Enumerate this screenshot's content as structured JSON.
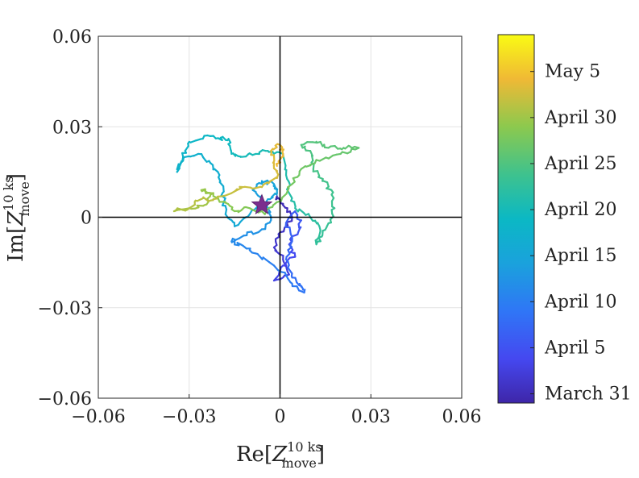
{
  "chart_data": {
    "type": "line",
    "title": "",
    "xlabel": {
      "main": "Re[",
      "var": "Z",
      "sup": "10 ks",
      "sub": "move",
      "close": "]"
    },
    "ylabel": {
      "main": "Im[",
      "var": "Z",
      "sup": "10 ks",
      "sub": "move",
      "close": "]"
    },
    "xlim": [
      -0.06,
      0.06
    ],
    "ylim": [
      -0.06,
      0.06
    ],
    "x_ticks": [
      -0.06,
      -0.03,
      0,
      0.03,
      0.06
    ],
    "y_ticks": [
      -0.06,
      -0.03,
      0,
      0.03,
      0.06
    ],
    "x_tick_labels": [
      "−0.06",
      "−0.03",
      "0",
      "0.03",
      "0.06"
    ],
    "y_tick_labels": [
      "−0.06",
      "−0.03",
      "0",
      "0.03",
      "0.06"
    ],
    "grid": true,
    "colormap": "parula",
    "colorbar": {
      "range_days": [
        0,
        40
      ],
      "labels": [
        {
          "text": "May 5",
          "day": 36
        },
        {
          "text": "April 30",
          "day": 31
        },
        {
          "text": "April 25",
          "day": 26
        },
        {
          "text": "April 20",
          "day": 21
        },
        {
          "text": "April 15",
          "day": 16
        },
        {
          "text": "April 10",
          "day": 11
        },
        {
          "text": "April 5",
          "day": 6
        },
        {
          "text": "March 31",
          "day": 1
        }
      ]
    },
    "trajectory": [
      {
        "x": -0.001,
        "y": 0.007,
        "day": 0
      },
      {
        "x": 0.001,
        "y": 0.004,
        "day": 1
      },
      {
        "x": 0.004,
        "y": 0.0,
        "day": 1.5
      },
      {
        "x": 0.0,
        "y": -0.005,
        "day": 2
      },
      {
        "x": -0.002,
        "y": -0.01,
        "day": 2.5
      },
      {
        "x": 0.001,
        "y": -0.014,
        "day": 3
      },
      {
        "x": 0.003,
        "y": -0.019,
        "day": 3.5
      },
      {
        "x": -0.002,
        "y": -0.021,
        "day": 4
      },
      {
        "x": 0.001,
        "y": -0.016,
        "day": 4.5
      },
      {
        "x": 0.005,
        "y": -0.013,
        "day": 5
      },
      {
        "x": 0.003,
        "y": -0.009,
        "day": 5.5
      },
      {
        "x": 0.006,
        "y": -0.005,
        "day": 6
      },
      {
        "x": 0.007,
        "y": -0.001,
        "day": 6.5
      },
      {
        "x": 0.005,
        "y": 0.002,
        "day": 7
      },
      {
        "x": 0.002,
        "y": -0.002,
        "day": 7.5
      },
      {
        "x": 0.004,
        "y": -0.008,
        "day": 8
      },
      {
        "x": 0.002,
        "y": -0.014,
        "day": 8.5
      },
      {
        "x": 0.004,
        "y": -0.02,
        "day": 9
      },
      {
        "x": 0.007,
        "y": -0.023,
        "day": 9.5
      },
      {
        "x": 0.008,
        "y": -0.025,
        "day": 10
      },
      {
        "x": 0.004,
        "y": -0.022,
        "day": 10.5
      },
      {
        "x": -0.002,
        "y": -0.016,
        "day": 11
      },
      {
        "x": -0.008,
        "y": -0.012,
        "day": 11.5
      },
      {
        "x": -0.013,
        "y": -0.009,
        "day": 12
      },
      {
        "x": -0.016,
        "y": -0.008,
        "day": 12.5
      },
      {
        "x": -0.011,
        "y": -0.006,
        "day": 13
      },
      {
        "x": -0.006,
        "y": -0.004,
        "day": 13.5
      },
      {
        "x": -0.003,
        "y": -0.001,
        "day": 14
      },
      {
        "x": -0.004,
        "y": 0.003,
        "day": 14.3
      },
      {
        "x": -0.006,
        "y": 0.006,
        "day": 14.6
      },
      {
        "x": -0.009,
        "y": 0.009,
        "day": 15
      },
      {
        "x": -0.006,
        "y": 0.012,
        "day": 15.3
      },
      {
        "x": -0.002,
        "y": 0.011,
        "day": 15.6
      },
      {
        "x": -0.001,
        "y": 0.008,
        "day": 15.9
      },
      {
        "x": -0.004,
        "y": 0.006,
        "day": 16.2
      },
      {
        "x": -0.01,
        "y": 0.001,
        "day": 16.5
      },
      {
        "x": -0.015,
        "y": -0.003,
        "day": 16.7
      },
      {
        "x": -0.018,
        "y": 0.001,
        "day": 17
      },
      {
        "x": -0.019,
        "y": 0.008,
        "day": 17.3
      },
      {
        "x": -0.02,
        "y": 0.014,
        "day": 17.6
      },
      {
        "x": -0.023,
        "y": 0.018,
        "day": 17.9
      },
      {
        "x": -0.027,
        "y": 0.021,
        "day": 18.2
      },
      {
        "x": -0.032,
        "y": 0.019,
        "day": 18.5
      },
      {
        "x": -0.034,
        "y": 0.015,
        "day": 18.8
      },
      {
        "x": -0.032,
        "y": 0.02,
        "day": 19.1
      },
      {
        "x": -0.03,
        "y": 0.025,
        "day": 19.4
      },
      {
        "x": -0.025,
        "y": 0.027,
        "day": 19.7
      },
      {
        "x": -0.02,
        "y": 0.026,
        "day": 20
      },
      {
        "x": -0.017,
        "y": 0.026,
        "day": 20.3
      },
      {
        "x": -0.016,
        "y": 0.021,
        "day": 20.6
      },
      {
        "x": -0.013,
        "y": 0.02,
        "day": 20.9
      },
      {
        "x": -0.008,
        "y": 0.021,
        "day": 21.2
      },
      {
        "x": -0.004,
        "y": 0.022,
        "day": 21.5
      },
      {
        "x": 0.001,
        "y": 0.021,
        "day": 21.8
      },
      {
        "x": 0.002,
        "y": 0.014,
        "day": 22.1
      },
      {
        "x": 0.003,
        "y": 0.008,
        "day": 22.4
      },
      {
        "x": 0.005,
        "y": 0.003,
        "day": 22.7
      },
      {
        "x": 0.01,
        "y": 0.0,
        "day": 23.0
      },
      {
        "x": 0.013,
        "y": -0.003,
        "day": 23.3
      },
      {
        "x": 0.012,
        "y": -0.009,
        "day": 23.6
      },
      {
        "x": 0.014,
        "y": -0.006,
        "day": 23.9
      },
      {
        "x": 0.016,
        "y": -0.002,
        "day": 24.2
      },
      {
        "x": 0.018,
        "y": 0.003,
        "day": 24.5
      },
      {
        "x": 0.017,
        "y": 0.009,
        "day": 24.8
      },
      {
        "x": 0.014,
        "y": 0.012,
        "day": 25.1
      },
      {
        "x": 0.011,
        "y": 0.016,
        "day": 25.4
      },
      {
        "x": 0.01,
        "y": 0.022,
        "day": 25.7
      },
      {
        "x": 0.007,
        "y": 0.024,
        "day": 26.0
      },
      {
        "x": 0.012,
        "y": 0.025,
        "day": 26.3
      },
      {
        "x": 0.016,
        "y": 0.023,
        "day": 26.6
      },
      {
        "x": 0.021,
        "y": 0.023,
        "day": 26.9
      },
      {
        "x": 0.026,
        "y": 0.023,
        "day": 27.2
      },
      {
        "x": 0.02,
        "y": 0.021,
        "day": 27.5
      },
      {
        "x": 0.012,
        "y": 0.019,
        "day": 27.8
      },
      {
        "x": 0.007,
        "y": 0.016,
        "day": 28.1
      },
      {
        "x": 0.004,
        "y": 0.011,
        "day": 28.4
      },
      {
        "x": -0.001,
        "y": 0.005,
        "day": 28.7
      },
      {
        "x": -0.005,
        "y": 0.001,
        "day": 29.0
      },
      {
        "x": -0.01,
        "y": 0.003,
        "day": 29.3
      },
      {
        "x": -0.015,
        "y": 0.002,
        "day": 29.6
      },
      {
        "x": -0.018,
        "y": 0.005,
        "day": 29.9
      },
      {
        "x": -0.022,
        "y": 0.007,
        "day": 30.2
      },
      {
        "x": -0.026,
        "y": 0.009,
        "day": 30.5
      },
      {
        "x": -0.022,
        "y": 0.008,
        "day": 30.8
      },
      {
        "x": -0.025,
        "y": 0.004,
        "day": 31.1
      },
      {
        "x": -0.03,
        "y": 0.003,
        "day": 31.4
      },
      {
        "x": -0.035,
        "y": 0.002,
        "day": 31.7
      },
      {
        "x": -0.03,
        "y": 0.003,
        "day": 32.0
      },
      {
        "x": -0.026,
        "y": 0.006,
        "day": 32.3
      },
      {
        "x": -0.022,
        "y": 0.006,
        "day": 32.6
      },
      {
        "x": -0.016,
        "y": 0.008,
        "day": 32.9
      },
      {
        "x": -0.012,
        "y": 0.01,
        "day": 33.2
      },
      {
        "x": -0.006,
        "y": 0.01,
        "day": 33.5
      },
      {
        "x": -0.001,
        "y": 0.013,
        "day": 33.8
      },
      {
        "x": -0.002,
        "y": 0.018,
        "day": 34.1
      },
      {
        "x": -0.003,
        "y": 0.022,
        "day": 34.4
      },
      {
        "x": 0.0,
        "y": 0.024,
        "day": 34.7
      },
      {
        "x": 0.001,
        "y": 0.021,
        "day": 35.0
      },
      {
        "x": -0.001,
        "y": 0.017,
        "day": 35.3
      }
    ],
    "star": {
      "x": -0.006,
      "y": 0.004
    }
  }
}
